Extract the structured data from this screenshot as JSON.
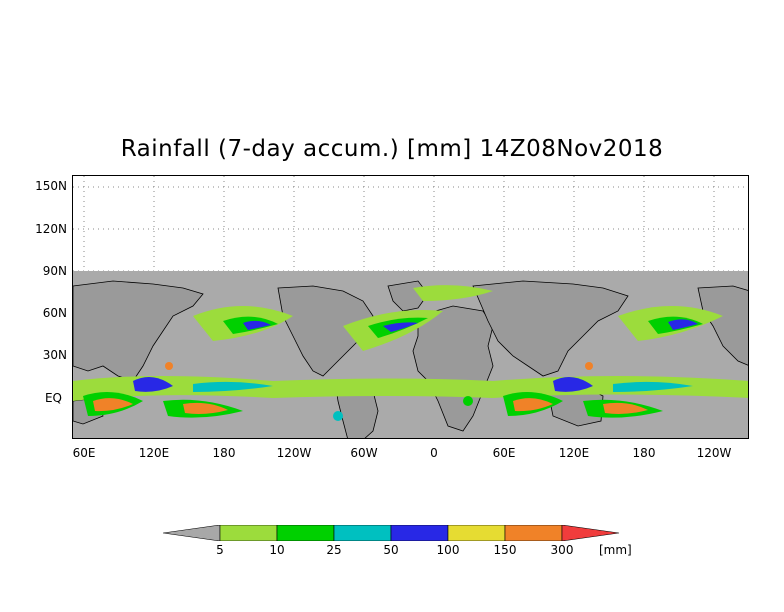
{
  "title": "Rainfall (7-day accum.) [mm] 14Z08Nov2018",
  "map": {
    "y_axis_labels": [
      "150N",
      "120N",
      "90N",
      "60N",
      "30N",
      "EQ"
    ],
    "x_axis_labels": [
      "60E",
      "120E",
      "180",
      "120W",
      "60W",
      "0",
      "60E",
      "120E",
      "180",
      "120W"
    ],
    "background_color": "#aaaaaa",
    "gridline_style": "dotted"
  },
  "colorbar": {
    "bins": [
      {
        "color": "#a8a8a8"
      },
      {
        "color": "#9cdc3c"
      },
      {
        "color": "#00d000"
      },
      {
        "color": "#00c0c0"
      },
      {
        "color": "#2828e6"
      },
      {
        "color": "#e6dc32"
      },
      {
        "color": "#f08228"
      },
      {
        "color": "#f03c3c"
      }
    ],
    "labels": [
      "5",
      "10",
      "25",
      "50",
      "100",
      "150",
      "300"
    ],
    "unit": "[mm]"
  }
}
